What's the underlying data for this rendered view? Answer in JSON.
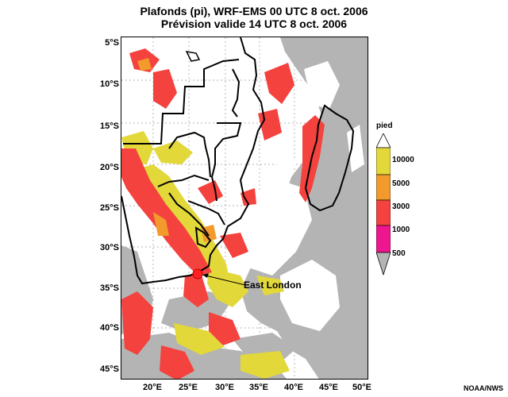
{
  "title": "Plafonds (pi), WRF-EMS 00 UTC 8 oct. 2006",
  "subtitle": "Prévision valide 14 UTC 8 oct. 2006",
  "lat_labels": [
    "5°S",
    "10°S",
    "15°S",
    "20°S",
    "25°S",
    "30°S",
    "35°S",
    "40°S",
    "45°S"
  ],
  "lon_labels": [
    "20°E",
    "25°E",
    "30°E",
    "35°E",
    "40°E",
    "45°E",
    "50°E"
  ],
  "legend": {
    "unit": "pied",
    "levels": [
      "10000",
      "5000",
      "3000",
      "1000",
      "500"
    ],
    "colors": {
      "10000": "#e3d83a",
      "5000": "#f39a2d",
      "3000": "#f4423f",
      "1000": "#ee168f",
      "500": "#b4b4b4"
    }
  },
  "annotation": "East London",
  "credit": "NOAA/NWS"
}
